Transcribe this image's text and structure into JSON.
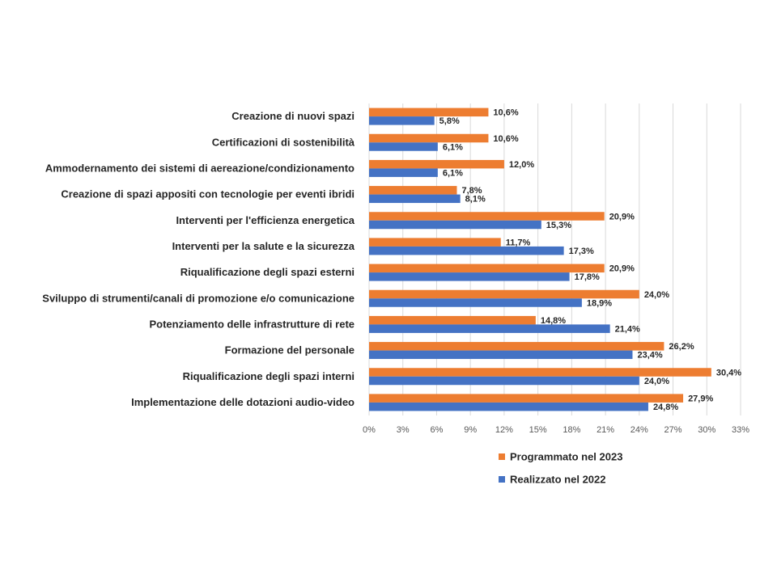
{
  "chart_data": {
    "type": "bar",
    "orientation": "horizontal",
    "categories": [
      "Creazione di nuovi spazi",
      "Certificazioni di sostenibilità",
      "Ammodernamento dei sistemi di aereazione/condizionamento",
      "Creazione di spazi appositi con tecnologie per eventi ibridi",
      "Interventi per l'efficienza energetica",
      "Interventi per la salute e la sicurezza",
      "Riqualificazione degli spazi esterni",
      "Sviluppo di strumenti/canali di promozione e/o comunicazione",
      "Potenziamento delle infrastrutture di rete",
      "Formazione del personale",
      "Riqualificazione degli spazi interni",
      "Implementazione delle dotazioni audio-video"
    ],
    "series": [
      {
        "name": "Programmato nel 2023",
        "color": "#ED7D31",
        "values": [
          10.6,
          10.6,
          12.0,
          7.8,
          20.9,
          11.7,
          20.9,
          24.0,
          14.8,
          26.2,
          30.4,
          27.9
        ],
        "labels": [
          "10,6%",
          "10,6%",
          "12,0%",
          "7,8%",
          "20,9%",
          "11,7%",
          "20,9%",
          "24,0%",
          "14,8%",
          "26,2%",
          "30,4%",
          "27,9%"
        ]
      },
      {
        "name": "Realizzato nel 2022",
        "color": "#4472C4",
        "values": [
          5.8,
          6.1,
          6.1,
          8.1,
          15.3,
          17.3,
          17.8,
          18.9,
          21.4,
          23.4,
          24.0,
          24.8
        ],
        "labels": [
          "5,8%",
          "6,1%",
          "6,1%",
          "8,1%",
          "15,3%",
          "17,3%",
          "17,8%",
          "18,9%",
          "21,4%",
          "23,4%",
          "24,0%",
          "24,8%"
        ]
      }
    ],
    "xlim": [
      0,
      33
    ],
    "xticks": [
      0,
      3,
      6,
      9,
      12,
      15,
      18,
      21,
      24,
      27,
      30,
      33
    ],
    "xtick_labels": [
      "0%",
      "3%",
      "6%",
      "9%",
      "12%",
      "15%",
      "18%",
      "21%",
      "24%",
      "27%",
      "30%",
      "33%"
    ],
    "grid": "vertical",
    "legend_position": "bottom"
  }
}
